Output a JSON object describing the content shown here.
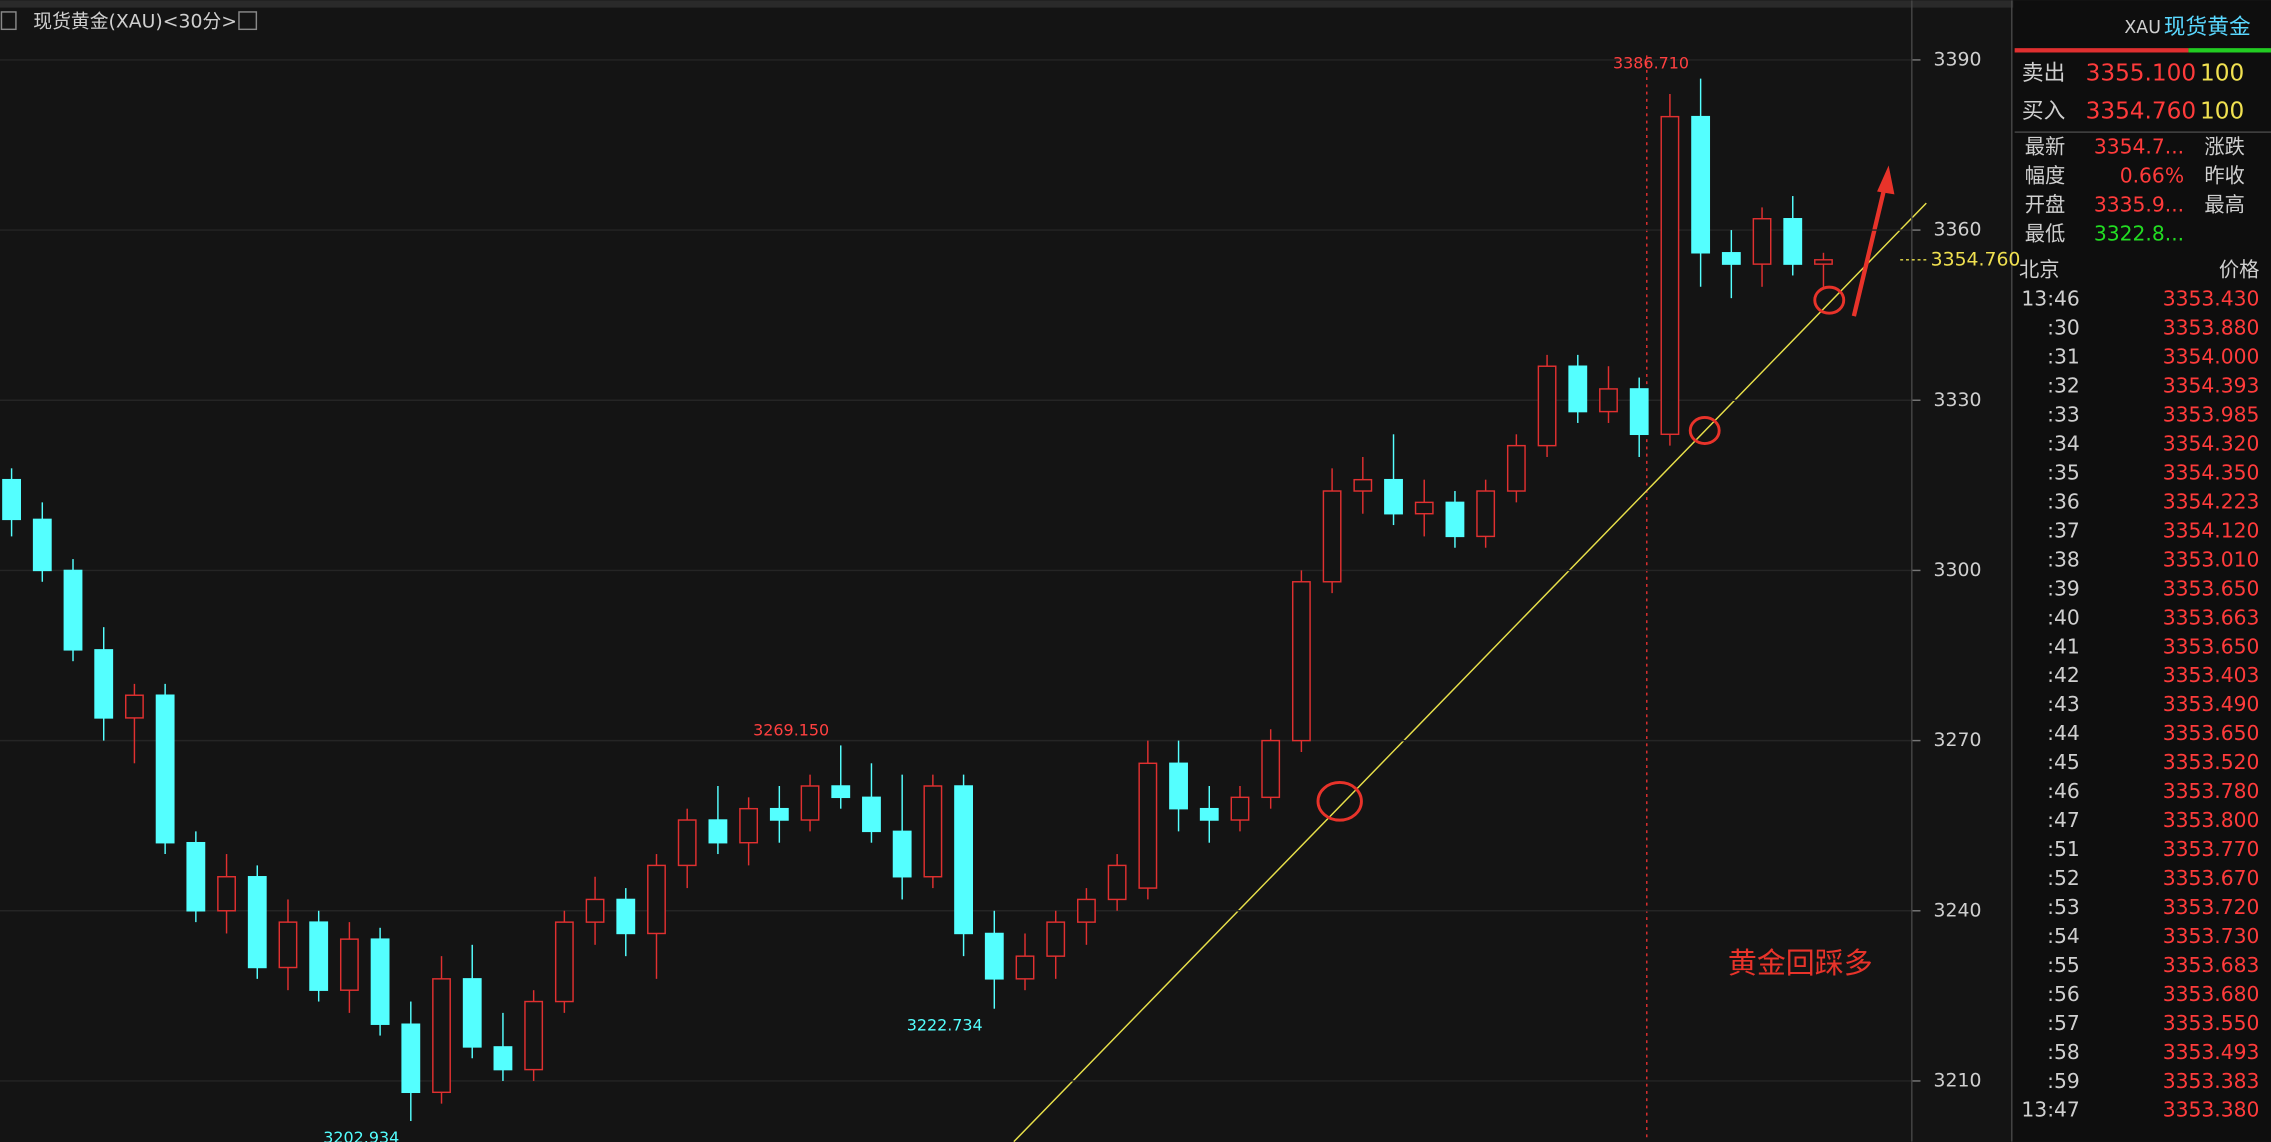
{
  "header": {
    "title": "现货黄金(XAU)<30分>"
  },
  "chart_data": {
    "type": "candlestick",
    "up_color": "#e03030",
    "down_color": "#54ffff",
    "open": [
      3316,
      3309,
      3300,
      3286,
      3274,
      3278,
      3252,
      3240,
      3246,
      3230,
      3238,
      3226,
      3235,
      3220,
      3208,
      3228,
      3216,
      3212,
      3224,
      3238,
      3242,
      3236,
      3248,
      3256,
      3252,
      3258,
      3256,
      3262,
      3260,
      3254,
      3246,
      3262,
      3236,
      3228,
      3232,
      3238,
      3242,
      3244,
      3266,
      3258,
      3256,
      3260,
      3270,
      3298,
      3314,
      3316,
      3310,
      3312,
      3306,
      3314,
      3322,
      3336,
      3328,
      3332,
      3324,
      3380,
      3356,
      3354,
      3362,
      3354
    ],
    "high": [
      3318,
      3312,
      3302,
      3290,
      3280,
      3280,
      3254,
      3250,
      3248,
      3242,
      3240,
      3238,
      3237,
      3224,
      3232,
      3234,
      3222,
      3226,
      3240,
      3246,
      3244,
      3250,
      3258,
      3262,
      3260,
      3262,
      3264,
      3269.15,
      3266,
      3264,
      3264,
      3264,
      3240,
      3236,
      3240,
      3244,
      3250,
      3270,
      3270,
      3262,
      3262,
      3272,
      3300,
      3318,
      3320,
      3324,
      3316,
      3314,
      3316,
      3324,
      3338,
      3338,
      3336,
      3334,
      3384,
      3386.71,
      3360,
      3364,
      3366,
      3356
    ],
    "low": [
      3306,
      3298,
      3284,
      3270,
      3266,
      3250,
      3238,
      3236,
      3228,
      3226,
      3224,
      3222,
      3218,
      3202.934,
      3206,
      3214,
      3210,
      3210,
      3222,
      3234,
      3232,
      3228,
      3244,
      3250,
      3248,
      3252,
      3254,
      3258,
      3252,
      3242,
      3244,
      3232,
      3222.734,
      3226,
      3228,
      3234,
      3240,
      3242,
      3254,
      3252,
      3254,
      3258,
      3268,
      3296,
      3310,
      3308,
      3306,
      3304,
      3304,
      3312,
      3320,
      3326,
      3326,
      3320,
      3322,
      3350,
      3348,
      3350,
      3352,
      3350
    ],
    "close": [
      3309,
      3300,
      3286,
      3274,
      3278,
      3252,
      3240,
      3246,
      3230,
      3238,
      3226,
      3235,
      3220,
      3208,
      3228,
      3216,
      3212,
      3224,
      3238,
      3242,
      3236,
      3248,
      3256,
      3252,
      3258,
      3256,
      3262,
      3260,
      3254,
      3246,
      3262,
      3236,
      3228,
      3232,
      3238,
      3242,
      3248,
      3266,
      3258,
      3256,
      3260,
      3270,
      3298,
      3314,
      3316,
      3310,
      3312,
      3306,
      3314,
      3322,
      3336,
      3328,
      3332,
      3324,
      3380,
      3356,
      3354,
      3362,
      3354,
      3354.76
    ],
    "ylim": [
      3199.3,
      3400.5
    ],
    "yticks": [
      3210,
      3240,
      3270,
      3300,
      3330,
      3360,
      3390
    ],
    "grid": true,
    "annotations": [
      {
        "value": 3386.71,
        "label": "3386.710"
      },
      {
        "value": 3269.15,
        "label": "3269.150"
      },
      {
        "value": 3222.734,
        "label": "3222.734"
      },
      {
        "value": 3202.934,
        "label": "3202.934"
      }
    ],
    "last_price": {
      "value": 3354.76,
      "label": "3354.760"
    },
    "note": "黄金回踩多"
  },
  "quote_panel": {
    "title_code": "XAU",
    "title_name": "现货黄金",
    "quotes": [
      {
        "label": "卖出",
        "price": "3355.100",
        "volume": "100"
      },
      {
        "label": "买入",
        "price": "3354.760",
        "volume": "100"
      }
    ],
    "stats": [
      {
        "label": "最新",
        "value": "3354.7...",
        "extra": "涨跌",
        "color": "#ff3b3b"
      },
      {
        "label": "幅度",
        "value": "0.66%",
        "extra": "昨收",
        "color": "#ff3b3b"
      },
      {
        "label": "开盘",
        "value": "3335.9...",
        "extra": "最高",
        "color": "#ff3b3b"
      },
      {
        "label": "最低",
        "value": "3322.8...",
        "color": "#22dd22"
      }
    ],
    "ticks_header": [
      "北京",
      "价格"
    ],
    "ticks": [
      [
        "13:46",
        "3353.430"
      ],
      [
        ":30",
        "3353.880"
      ],
      [
        ":31",
        "3354.000"
      ],
      [
        ":32",
        "3354.393"
      ],
      [
        ":33",
        "3353.985"
      ],
      [
        ":34",
        "3354.320"
      ],
      [
        ":35",
        "3354.350"
      ],
      [
        ":36",
        "3354.223"
      ],
      [
        ":37",
        "3354.120"
      ],
      [
        ":38",
        "3353.010"
      ],
      [
        ":39",
        "3353.650"
      ],
      [
        ":40",
        "3353.663"
      ],
      [
        ":41",
        "3353.650"
      ],
      [
        ":42",
        "3353.403"
      ],
      [
        ":43",
        "3353.490"
      ],
      [
        ":44",
        "3353.650"
      ],
      [
        ":45",
        "3353.520"
      ],
      [
        ":46",
        "3353.780"
      ],
      [
        ":47",
        "3353.800"
      ],
      [
        ":51",
        "3353.770"
      ],
      [
        ":52",
        "3353.670"
      ],
      [
        ":53",
        "3353.720"
      ],
      [
        ":54",
        "3353.730"
      ],
      [
        ":55",
        "3353.683"
      ],
      [
        ":56",
        "3353.680"
      ],
      [
        ":57",
        "3353.550"
      ],
      [
        ":58",
        "3353.493"
      ],
      [
        ":59",
        "3353.383"
      ],
      [
        "13:47",
        "3353.380"
      ]
    ]
  }
}
